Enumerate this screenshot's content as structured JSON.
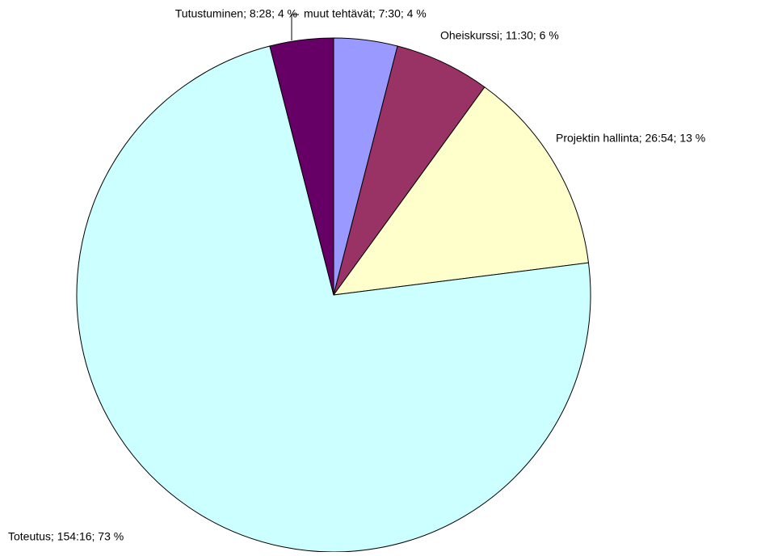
{
  "chart_data": {
    "type": "pie",
    "values": [
      4,
      6,
      13,
      73,
      4
    ],
    "value_labels": [
      "muut tehtävät; 7:30; 4 %",
      "Oheiskurssi; 11:30; 6 %",
      "Projektin hallinta; 26:54; 13 %",
      "Toteutus; 154:16; 73 %",
      "Tutustuminen; 8:28; 4 %"
    ],
    "colors": [
      "#9999ff",
      "#993366",
      "#ffffcc",
      "#ccffff",
      "#660066"
    ]
  }
}
